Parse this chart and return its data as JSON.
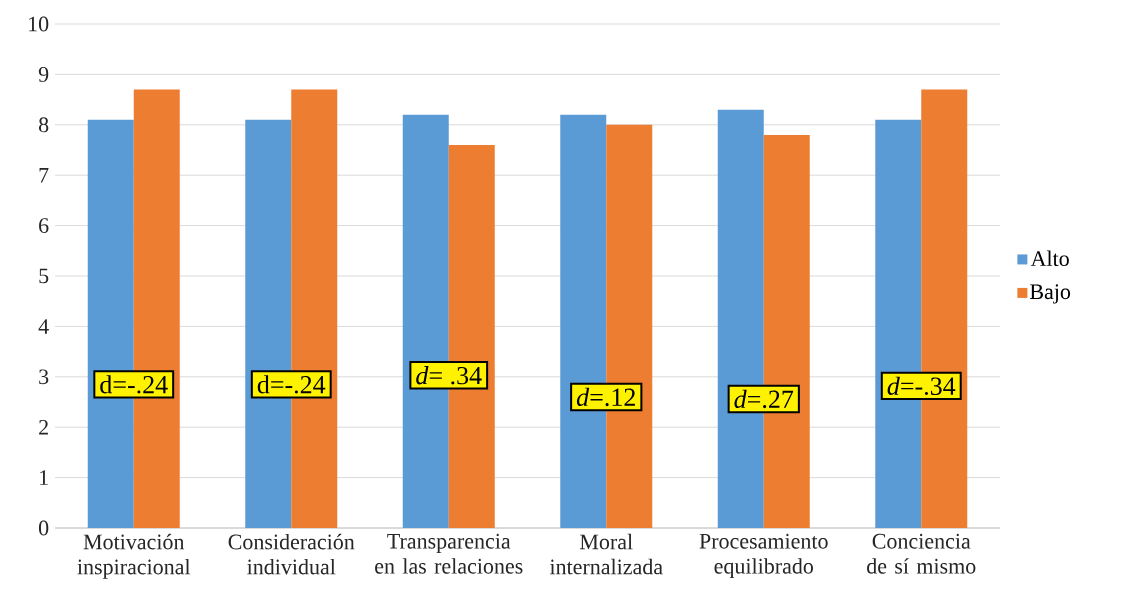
{
  "chart_data": {
    "type": "bar",
    "categories": [
      "Motivación inspiracional",
      "Consideración individual",
      "Transparencia en las relaciones",
      "Moral internalizada",
      "Procesamiento equilibrado",
      "Conciencia de sí mismo"
    ],
    "series": [
      {
        "name": "Alto",
        "color": "#5b9bd5",
        "values": [
          8.1,
          8.1,
          8.2,
          8.2,
          8.3,
          8.1
        ]
      },
      {
        "name": "Bajo",
        "color": "#ed7d31",
        "values": [
          8.7,
          8.7,
          7.6,
          8.0,
          7.8,
          8.7
        ]
      }
    ],
    "ylim": [
      0,
      10
    ],
    "yticks": [
      0,
      1,
      2,
      3,
      4,
      5,
      6,
      7,
      8,
      9,
      10
    ],
    "grid": "y",
    "legend": "right",
    "annotations": [
      {
        "text": "d=-.24",
        "x": "Motivación inspiracional",
        "y": 2.85
      },
      {
        "text": "d=-.24",
        "x": "Consideración individual",
        "y": 2.85
      },
      {
        "text": "*d*= .34",
        "x": "Transparencia en las relaciones",
        "y": 3.03
      },
      {
        "text": "*d*=.12",
        "x": "Moral internalizada",
        "y": 2.6
      },
      {
        "text": "*d*=.27",
        "x": "Procesamiento equilibrado",
        "y": 2.56
      },
      {
        "text": "*d*=-.34",
        "x": "Conciencia de sí mismo",
        "y": 2.82
      }
    ]
  }
}
